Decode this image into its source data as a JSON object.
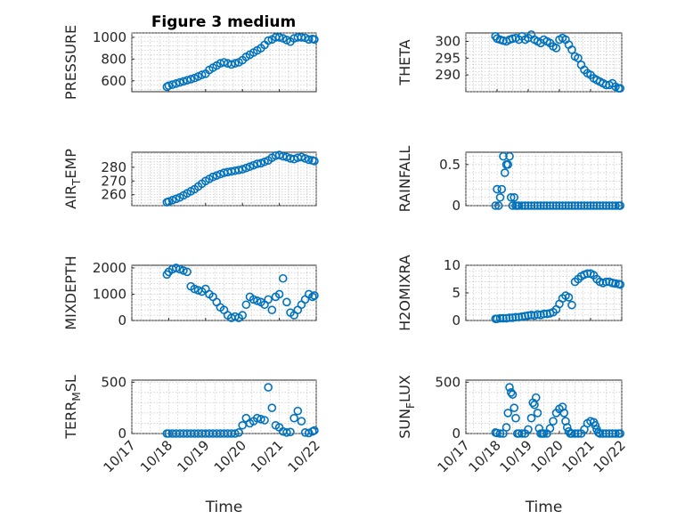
{
  "figure": {
    "title": "Figure 3 medium"
  },
  "chart_data": [
    {
      "type": "scatter",
      "ylabel": "PRESSURE",
      "title": "Figure 3 medium",
      "xlim": [
        0,
        5
      ],
      "xticks": [
        0,
        1,
        2,
        3,
        4,
        5
      ],
      "xtick_labels": [
        "10/17",
        "10/18",
        "10/19",
        "10/20",
        "10/21",
        "10/22"
      ],
      "ylim": [
        500,
        1040
      ],
      "yticks": [
        600,
        800,
        1000
      ],
      "ytick_labels": [
        "600",
        "800",
        "1000"
      ],
      "show_xticklabels": false,
      "grid": true,
      "series": [
        {
          "x": [
            0.95,
            1.0,
            1.1,
            1.2,
            1.3,
            1.4,
            1.5,
            1.6,
            1.7,
            1.8,
            1.9,
            2.0,
            2.1,
            2.2,
            2.3,
            2.4,
            2.5,
            2.6,
            2.7,
            2.8,
            2.9,
            3.0,
            3.1,
            3.2,
            3.3,
            3.4,
            3.5,
            3.6,
            3.7,
            3.8,
            3.9,
            4.0,
            4.1,
            4.2,
            4.3,
            4.4,
            4.5,
            4.6,
            4.7,
            4.8,
            4.9,
            4.95
          ],
          "y": [
            545,
            555,
            565,
            575,
            585,
            595,
            605,
            615,
            625,
            640,
            655,
            665,
            700,
            720,
            740,
            760,
            770,
            760,
            750,
            760,
            770,
            790,
            820,
            840,
            860,
            880,
            900,
            930,
            970,
            980,
            1000,
            1000,
            990,
            975,
            960,
            990,
            1000,
            1000,
            995,
            980,
            985,
            980
          ]
        }
      ]
    },
    {
      "type": "scatter",
      "ylabel": "THETA",
      "xlim": [
        0,
        5
      ],
      "xticks": [
        0,
        1,
        2,
        3,
        4,
        5
      ],
      "xtick_labels": [
        "10/17",
        "10/18",
        "10/19",
        "10/20",
        "10/21",
        "10/22"
      ],
      "ylim": [
        285,
        302.5
      ],
      "yticks": [
        290,
        295,
        300
      ],
      "ytick_labels": [
        "290",
        "295",
        "300"
      ],
      "show_xticklabels": false,
      "grid": true,
      "series": [
        {
          "x": [
            0.95,
            1.0,
            1.1,
            1.2,
            1.3,
            1.4,
            1.5,
            1.6,
            1.7,
            1.8,
            1.9,
            2.0,
            2.1,
            2.2,
            2.3,
            2.4,
            2.5,
            2.6,
            2.7,
            2.8,
            2.9,
            3.0,
            3.1,
            3.2,
            3.3,
            3.4,
            3.5,
            3.6,
            3.7,
            3.8,
            3.9,
            4.0,
            4.1,
            4.2,
            4.3,
            4.4,
            4.5,
            4.6,
            4.7,
            4.8,
            4.9,
            4.95
          ],
          "y": [
            301.5,
            300.8,
            300.5,
            300.2,
            300.0,
            300.5,
            300.8,
            301.0,
            300.5,
            301.5,
            300.5,
            301.0,
            302.0,
            300.5,
            300.0,
            299.5,
            300.5,
            300.0,
            299.5,
            298.5,
            298.0,
            300.5,
            301.0,
            300.5,
            299.0,
            297.5,
            295.5,
            295.0,
            293.0,
            291.5,
            290.5,
            290.0,
            289.0,
            288.5,
            288.0,
            287.5,
            287.0,
            287.0,
            287.5,
            286.5,
            286.0,
            286.0
          ]
        }
      ]
    },
    {
      "type": "scatter",
      "ylabel": "AIRTEMP",
      "ylabel_display": {
        "main": "AIR",
        "sub": "T",
        "rest": "EMP"
      },
      "xlim": [
        0,
        5
      ],
      "xticks": [
        0,
        1,
        2,
        3,
        4,
        5
      ],
      "xtick_labels": [
        "10/17",
        "10/18",
        "10/19",
        "10/20",
        "10/21",
        "10/22"
      ],
      "ylim": [
        252,
        291
      ],
      "yticks": [
        260,
        270,
        280
      ],
      "ytick_labels": [
        "260",
        "270",
        "280"
      ],
      "show_xticklabels": false,
      "grid": true,
      "series": [
        {
          "x": [
            0.95,
            1.0,
            1.1,
            1.2,
            1.3,
            1.4,
            1.5,
            1.6,
            1.7,
            1.8,
            1.9,
            2.0,
            2.1,
            2.2,
            2.3,
            2.4,
            2.5,
            2.6,
            2.7,
            2.8,
            2.9,
            3.0,
            3.1,
            3.2,
            3.3,
            3.4,
            3.5,
            3.6,
            3.7,
            3.8,
            3.9,
            4.0,
            4.1,
            4.2,
            4.3,
            4.4,
            4.5,
            4.6,
            4.7,
            4.8,
            4.9,
            4.95
          ],
          "y": [
            254.5,
            255.0,
            256.0,
            257.0,
            258.0,
            259.5,
            261.0,
            262.5,
            264.0,
            266.0,
            268.0,
            270.0,
            271.5,
            273.0,
            274.0,
            275.0,
            276.0,
            276.5,
            277.0,
            277.5,
            278.0,
            278.5,
            279.5,
            280.5,
            281.5,
            282.5,
            283.0,
            284.0,
            285.0,
            287.0,
            288.5,
            289.0,
            288.0,
            287.5,
            286.5,
            286.0,
            287.0,
            287.5,
            286.5,
            285.5,
            285.0,
            284.5
          ]
        }
      ]
    },
    {
      "type": "scatter",
      "ylabel": "RAINFALL",
      "xlim": [
        0,
        5
      ],
      "xticks": [
        0,
        1,
        2,
        3,
        4,
        5
      ],
      "xtick_labels": [
        "10/17",
        "10/18",
        "10/19",
        "10/20",
        "10/21",
        "10/22"
      ],
      "ylim": [
        0,
        0.65
      ],
      "yticks": [
        0,
        0.5
      ],
      "ytick_labels": [
        "0",
        "0.5"
      ],
      "show_xticklabels": false,
      "grid": true,
      "series": [
        {
          "x": [
            0.95,
            1.0,
            1.05,
            1.1,
            1.15,
            1.2,
            1.25,
            1.3,
            1.35,
            1.4,
            1.45,
            1.5,
            1.55,
            1.6,
            1.65,
            1.7,
            1.8,
            1.9,
            2.0,
            2.1,
            2.2,
            2.3,
            2.4,
            2.5,
            2.6,
            2.7,
            2.8,
            2.9,
            3.0,
            3.1,
            3.2,
            3.3,
            3.4,
            3.5,
            3.6,
            3.7,
            3.8,
            3.9,
            4.0,
            4.1,
            4.2,
            4.3,
            4.4,
            4.5,
            4.6,
            4.7,
            4.8,
            4.9,
            4.95
          ],
          "y": [
            0,
            0.2,
            0,
            0.1,
            0.2,
            0.6,
            0.4,
            0.5,
            0.5,
            0.6,
            0.1,
            0,
            0.1,
            0,
            0,
            0,
            0,
            0,
            0,
            0,
            0,
            0,
            0,
            0,
            0,
            0,
            0,
            0,
            0,
            0,
            0,
            0,
            0,
            0,
            0,
            0,
            0,
            0,
            0,
            0,
            0,
            0,
            0,
            0,
            0,
            0,
            0,
            0,
            0
          ]
        }
      ]
    },
    {
      "type": "scatter",
      "ylabel": "MIXDEPTH",
      "xlim": [
        0,
        5
      ],
      "xticks": [
        0,
        1,
        2,
        3,
        4,
        5
      ],
      "xtick_labels": [
        "10/17",
        "10/18",
        "10/19",
        "10/20",
        "10/21",
        "10/22"
      ],
      "ylim": [
        0,
        2100
      ],
      "yticks": [
        0,
        1000,
        2000
      ],
      "ytick_labels": [
        "0",
        "1000",
        "2000"
      ],
      "show_xticklabels": false,
      "grid": true,
      "series": [
        {
          "x": [
            0.95,
            1.0,
            1.1,
            1.2,
            1.3,
            1.4,
            1.5,
            1.6,
            1.7,
            1.8,
            1.9,
            2.0,
            2.1,
            2.2,
            2.3,
            2.4,
            2.5,
            2.6,
            2.7,
            2.8,
            2.9,
            3.0,
            3.1,
            3.2,
            3.3,
            3.4,
            3.5,
            3.6,
            3.7,
            3.8,
            3.9,
            4.0,
            4.1,
            4.2,
            4.3,
            4.4,
            4.5,
            4.6,
            4.7,
            4.8,
            4.9,
            4.95
          ],
          "y": [
            1750,
            1850,
            1950,
            2000,
            1950,
            1900,
            1850,
            1300,
            1200,
            1150,
            1100,
            1200,
            1000,
            900,
            700,
            500,
            400,
            200,
            100,
            150,
            100,
            200,
            600,
            900,
            800,
            750,
            700,
            600,
            800,
            400,
            900,
            1000,
            1600,
            700,
            300,
            200,
            400,
            600,
            800,
            1000,
            900,
            950
          ]
        }
      ]
    },
    {
      "type": "scatter",
      "ylabel": "H2OMIXRA",
      "xlim": [
        0,
        5
      ],
      "xticks": [
        0,
        1,
        2,
        3,
        4,
        5
      ],
      "xtick_labels": [
        "10/17",
        "10/18",
        "10/19",
        "10/20",
        "10/21",
        "10/22"
      ],
      "ylim": [
        0,
        10
      ],
      "yticks": [
        0,
        5,
        10
      ],
      "ytick_labels": [
        "0",
        "5",
        "10"
      ],
      "show_xticklabels": false,
      "grid": true,
      "series": [
        {
          "x": [
            0.95,
            1.0,
            1.1,
            1.2,
            1.3,
            1.4,
            1.5,
            1.6,
            1.7,
            1.8,
            1.9,
            2.0,
            2.1,
            2.2,
            2.3,
            2.4,
            2.5,
            2.6,
            2.7,
            2.8,
            2.9,
            3.0,
            3.1,
            3.2,
            3.3,
            3.4,
            3.5,
            3.6,
            3.7,
            3.8,
            3.9,
            4.0,
            4.1,
            4.2,
            4.3,
            4.4,
            4.5,
            4.6,
            4.7,
            4.8,
            4.9,
            4.95
          ],
          "y": [
            0.3,
            0.3,
            0.4,
            0.4,
            0.4,
            0.5,
            0.5,
            0.6,
            0.6,
            0.7,
            0.8,
            0.9,
            1.0,
            0.9,
            1.1,
            1.0,
            1.2,
            1.2,
            1.3,
            1.5,
            2.0,
            3.0,
            4.0,
            4.5,
            4.2,
            2.8,
            7.0,
            7.5,
            8.0,
            8.3,
            8.5,
            8.5,
            8.2,
            7.5,
            7.0,
            6.8,
            7.0,
            7.0,
            6.8,
            6.7,
            6.6,
            6.5
          ]
        }
      ]
    },
    {
      "type": "scatter",
      "ylabel": "TERRMSL",
      "ylabel_display": {
        "main": "TERR",
        "sub": "M",
        "rest": "SL"
      },
      "xlim": [
        0,
        5
      ],
      "xticks": [
        0,
        1,
        2,
        3,
        4,
        5
      ],
      "xtick_labels": [
        "10/17",
        "10/18",
        "10/19",
        "10/20",
        "10/21",
        "10/22"
      ],
      "ylim": [
        0,
        520
      ],
      "yticks": [
        0,
        500
      ],
      "ytick_labels": [
        "0",
        "500"
      ],
      "show_xticklabels": true,
      "xlabel": "Time",
      "grid": true,
      "series": [
        {
          "x": [
            0.95,
            1.0,
            1.1,
            1.2,
            1.3,
            1.4,
            1.5,
            1.6,
            1.7,
            1.8,
            1.9,
            2.0,
            2.1,
            2.2,
            2.3,
            2.4,
            2.5,
            2.6,
            2.7,
            2.8,
            2.9,
            3.0,
            3.1,
            3.2,
            3.3,
            3.4,
            3.5,
            3.6,
            3.7,
            3.8,
            3.9,
            4.0,
            4.1,
            4.2,
            4.3,
            4.4,
            4.5,
            4.6,
            4.7,
            4.8,
            4.9,
            4.95
          ],
          "y": [
            0,
            0,
            0,
            0,
            0,
            0,
            0,
            0,
            0,
            0,
            0,
            0,
            0,
            0,
            0,
            0,
            0,
            0,
            0,
            0,
            10,
            80,
            150,
            100,
            120,
            150,
            140,
            130,
            450,
            250,
            80,
            60,
            20,
            10,
            15,
            150,
            220,
            120,
            10,
            5,
            20,
            30
          ]
        }
      ]
    },
    {
      "type": "scatter",
      "ylabel": "SUNFLUX",
      "ylabel_display": {
        "main": "SUN",
        "sub": "F",
        "rest": "LUX"
      },
      "xlim": [
        0,
        5
      ],
      "xticks": [
        0,
        1,
        2,
        3,
        4,
        5
      ],
      "xtick_labels": [
        "10/17",
        "10/18",
        "10/19",
        "10/20",
        "10/21",
        "10/22"
      ],
      "ylim": [
        0,
        520
      ],
      "yticks": [
        0,
        500
      ],
      "ytick_labels": [
        "0",
        "500"
      ],
      "show_xticklabels": true,
      "xlabel": "Time",
      "grid": true,
      "series": [
        {
          "x": [
            0.95,
            1.0,
            1.1,
            1.2,
            1.3,
            1.35,
            1.4,
            1.45,
            1.5,
            1.55,
            1.6,
            1.65,
            1.7,
            1.8,
            1.9,
            2.0,
            2.1,
            2.15,
            2.2,
            2.25,
            2.3,
            2.35,
            2.4,
            2.45,
            2.5,
            2.6,
            2.7,
            2.8,
            2.9,
            3.0,
            3.1,
            3.15,
            3.2,
            3.25,
            3.3,
            3.35,
            3.4,
            3.5,
            3.6,
            3.7,
            3.8,
            3.9,
            4.0,
            4.1,
            4.15,
            4.2,
            4.25,
            4.3,
            4.4,
            4.5,
            4.6,
            4.7,
            4.8,
            4.9,
            4.95
          ],
          "y": [
            10,
            5,
            0,
            0,
            60,
            200,
            450,
            400,
            380,
            250,
            150,
            0,
            0,
            0,
            0,
            40,
            150,
            300,
            280,
            350,
            200,
            50,
            0,
            0,
            0,
            0,
            50,
            120,
            200,
            240,
            260,
            200,
            120,
            60,
            20,
            0,
            0,
            0,
            0,
            0,
            40,
            100,
            120,
            110,
            80,
            40,
            10,
            0,
            0,
            0,
            0,
            0,
            0,
            0,
            0
          ]
        }
      ]
    }
  ]
}
